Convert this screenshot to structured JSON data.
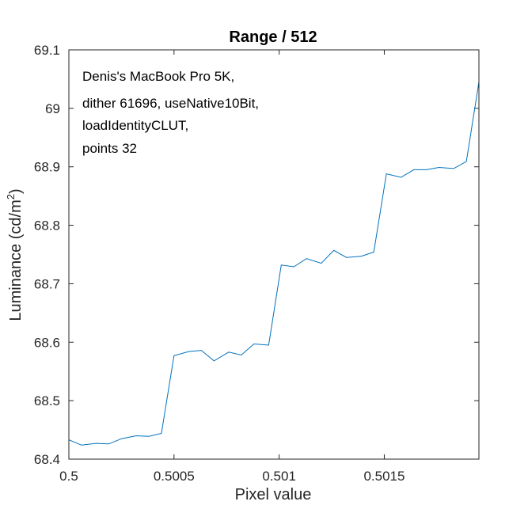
{
  "chart_data": {
    "type": "line",
    "title": "Range / 512",
    "xlabel": "Pixel value",
    "ylabel": "Luminance (cd/m",
    "ylabel_superscript": "2",
    "ylabel_suffix": ")",
    "xlim": [
      0.5,
      0.50195
    ],
    "ylim": [
      68.4,
      69.1
    ],
    "xticks": [
      0.5,
      0.5005,
      0.501,
      0.5015
    ],
    "xtick_labels": [
      "0.5",
      "0.5005",
      "0.501",
      "0.5015"
    ],
    "yticks": [
      68.4,
      68.5,
      68.6,
      68.7,
      68.8,
      68.9,
      69.0,
      69.1
    ],
    "ytick_labels": [
      "68.4",
      "68.5",
      "68.6",
      "68.7",
      "68.8",
      "68.9",
      "69",
      "69.1"
    ],
    "grid": false,
    "annotation": [
      "Denis's MacBook Pro 5K,",
      "dither 61696, useNative10Bit,",
      "loadIdentityCLUT,",
      "points 32"
    ],
    "series": [
      {
        "color": "#0072bd",
        "x": [
          0.5,
          0.50006,
          0.50013,
          0.50019,
          0.50025,
          0.50032,
          0.50038,
          0.50044,
          0.5005,
          0.50057,
          0.50063,
          0.50069,
          0.50076,
          0.50082,
          0.50088,
          0.50095,
          0.50101,
          0.50107,
          0.50113,
          0.5012,
          0.50126,
          0.50132,
          0.50139,
          0.50145,
          0.50151,
          0.50158,
          0.50164,
          0.5017,
          0.50176,
          0.50183,
          0.50189,
          0.50195
        ],
        "y": [
          68.433,
          68.424,
          68.427,
          68.426,
          68.435,
          68.44,
          68.439,
          68.444,
          68.577,
          68.584,
          68.586,
          68.568,
          68.583,
          68.578,
          68.597,
          68.595,
          68.732,
          68.729,
          68.743,
          68.735,
          68.757,
          68.745,
          68.747,
          68.754,
          68.888,
          68.882,
          68.895,
          68.895,
          68.899,
          68.897,
          68.909,
          69.045
        ]
      }
    ]
  }
}
